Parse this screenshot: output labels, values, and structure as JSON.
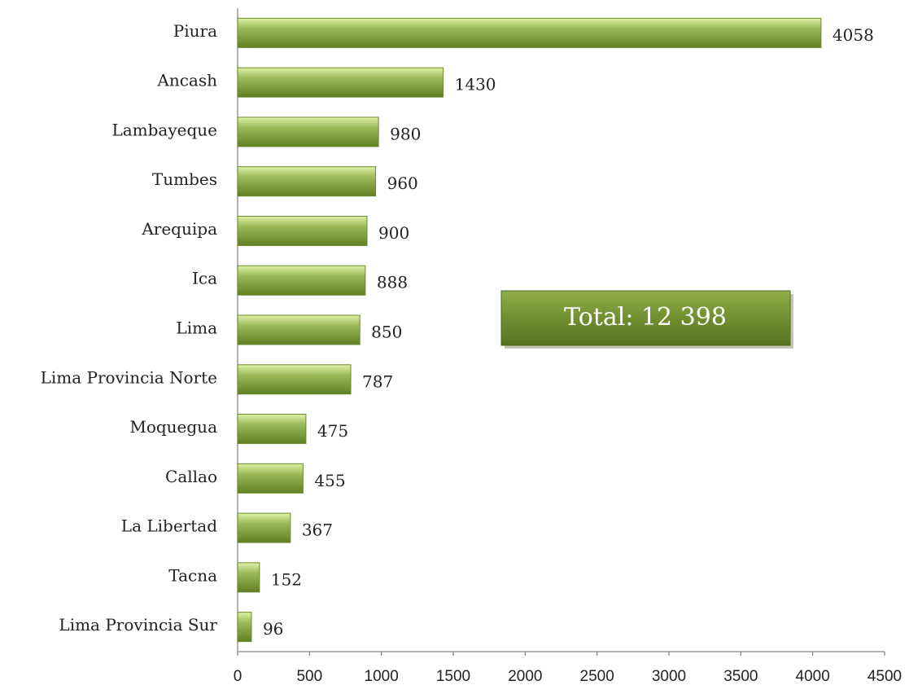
{
  "chart_data": {
    "type": "hbar",
    "categories": [
      "Piura",
      "Ancash",
      "Lambayeque",
      "Tumbes",
      "Arequipa",
      "Ica",
      "Lima",
      "Lima Provincia Norte",
      "Moquegua",
      "Callao",
      "La Libertad",
      "Tacna",
      "Lima Provincia Sur"
    ],
    "values": [
      4058,
      1430,
      980,
      960,
      900,
      888,
      850,
      787,
      475,
      455,
      367,
      152,
      96
    ],
    "color": "#9bbb59",
    "xlim": [
      0,
      4500
    ],
    "xticks": [
      0,
      500,
      1000,
      1500,
      2000,
      2500,
      3000,
      3500,
      4000,
      4500
    ],
    "grid": false,
    "annotation": "Total: 12 398"
  }
}
